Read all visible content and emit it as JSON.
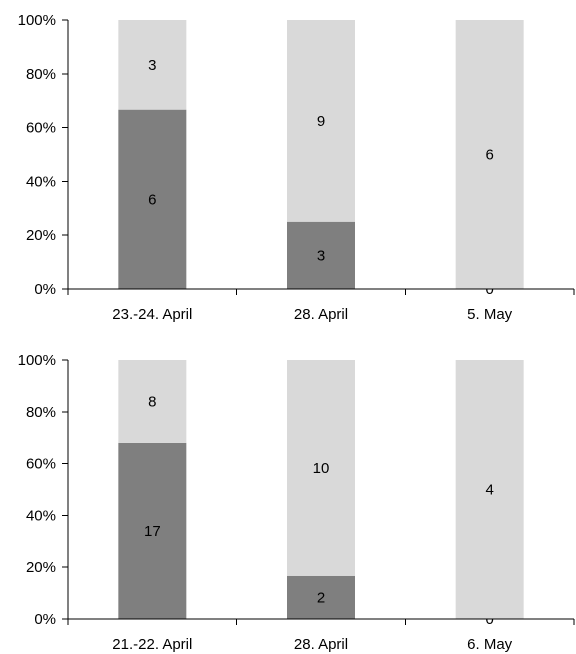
{
  "chart_data": [
    {
      "type": "bar",
      "stacked": "percent",
      "categories": [
        "23.-24. April",
        "28. April",
        "5. May"
      ],
      "series": [
        {
          "values": [
            6,
            3,
            0
          ],
          "color": "#7f7f7f"
        },
        {
          "values": [
            3,
            9,
            6
          ],
          "color": "#d9d9d9"
        }
      ],
      "y_ticks": [
        "0%",
        "20%",
        "40%",
        "60%",
        "80%",
        "100%"
      ],
      "ylim": [
        0,
        100
      ],
      "grid": false,
      "legend": "none"
    },
    {
      "type": "bar",
      "stacked": "percent",
      "categories": [
        "21.-22. April",
        "28. April",
        "6. May"
      ],
      "series": [
        {
          "values": [
            17,
            2,
            0
          ],
          "color": "#7f7f7f"
        },
        {
          "values": [
            8,
            10,
            4
          ],
          "color": "#d9d9d9"
        }
      ],
      "y_ticks": [
        "0%",
        "20%",
        "40%",
        "60%",
        "80%",
        "100%"
      ],
      "ylim": [
        0,
        100
      ],
      "grid": false,
      "legend": "none"
    }
  ]
}
